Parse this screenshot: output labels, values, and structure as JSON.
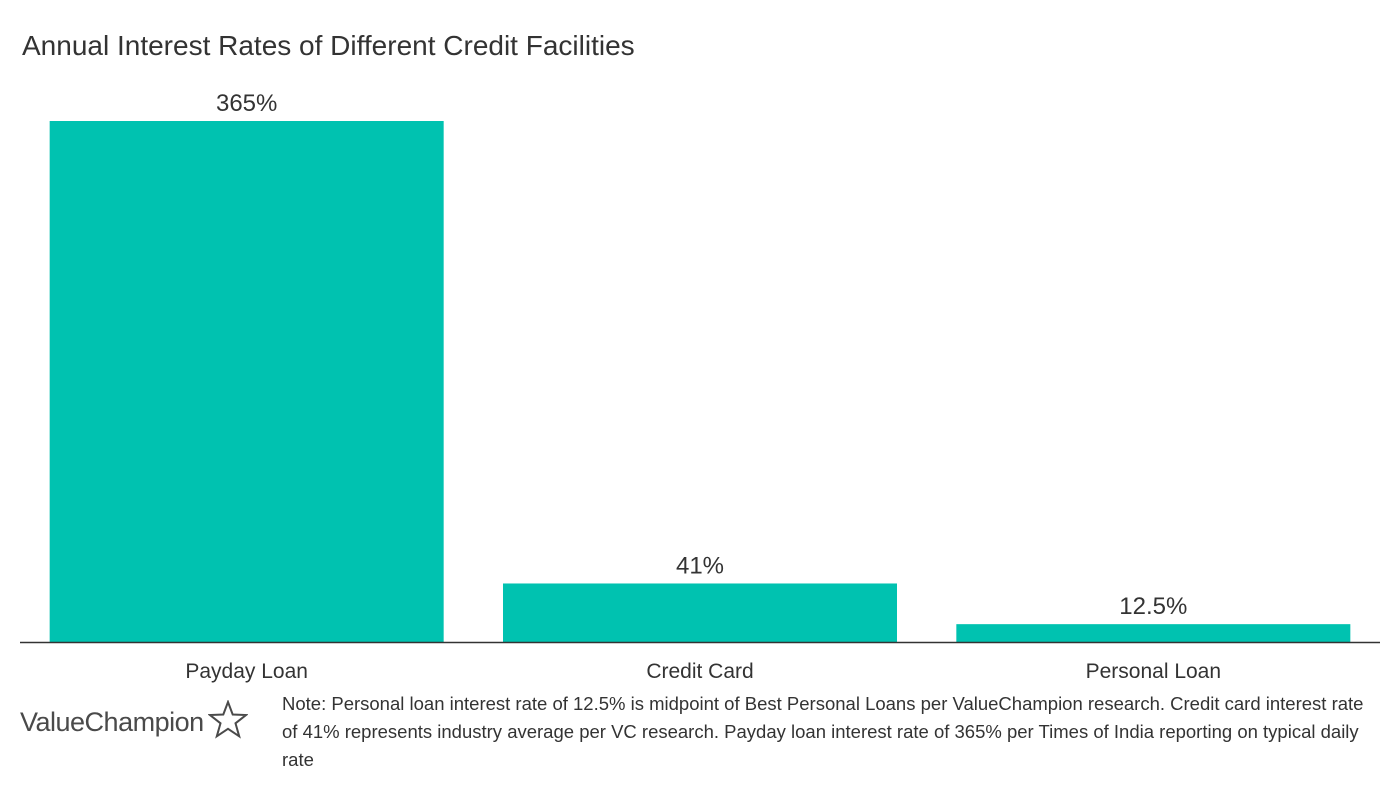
{
  "colors": {
    "bar": "#00C2B0",
    "axis": "#333333",
    "text": "#333333"
  },
  "logo": {
    "text": "ValueChampion",
    "icon": "star-outline-icon"
  },
  "note": "Note: Personal loan interest rate of 12.5% is midpoint of Best Personal Loans per ValueChampion research. Credit card interest rate of 41% represents industry average per VC research. Payday loan interest rate of 365% per Times of India reporting on typical daily rate",
  "chart_data": {
    "type": "bar",
    "title": "Annual Interest Rates of Different Credit Facilities",
    "categories": [
      "Payday Loan",
      "Credit Card",
      "Personal Loan"
    ],
    "values": [
      365,
      41,
      12.5
    ],
    "value_labels": [
      "365%",
      "41%",
      "12.5%"
    ],
    "xlabel": "",
    "ylabel": "",
    "ylim": [
      0,
      365
    ],
    "grid": false,
    "legend": "none"
  }
}
